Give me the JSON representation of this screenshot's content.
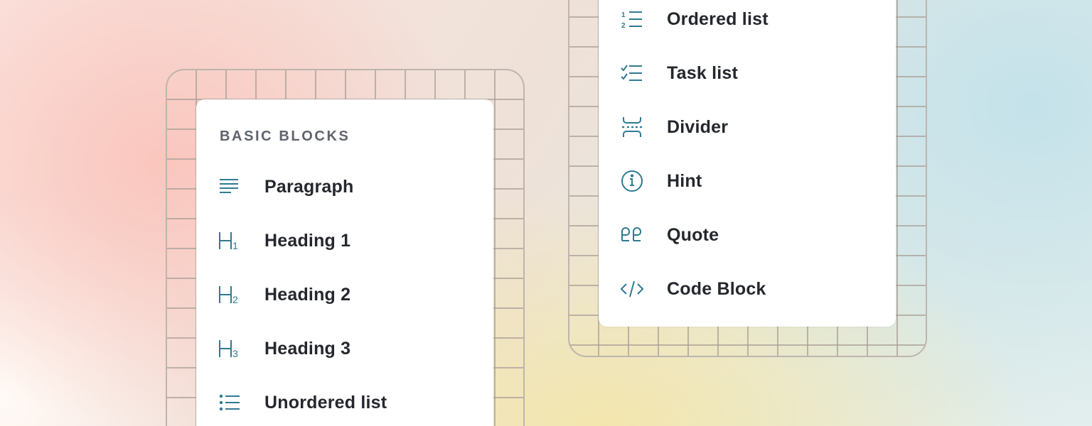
{
  "accent_color": "#2f7a90",
  "left_panel": {
    "header": "BASIC BLOCKS",
    "items": [
      {
        "label": "Paragraph",
        "icon": "paragraph-icon"
      },
      {
        "label": "Heading 1",
        "icon": "heading-1-icon"
      },
      {
        "label": "Heading 2",
        "icon": "heading-2-icon"
      },
      {
        "label": "Heading 3",
        "icon": "heading-3-icon"
      },
      {
        "label": "Unordered list",
        "icon": "unordered-list-icon"
      }
    ]
  },
  "right_panel": {
    "items": [
      {
        "label": "Ordered list",
        "icon": "ordered-list-icon"
      },
      {
        "label": "Task list",
        "icon": "task-list-icon"
      },
      {
        "label": "Divider",
        "icon": "divider-icon"
      },
      {
        "label": "Hint",
        "icon": "info-icon"
      },
      {
        "label": "Quote",
        "icon": "quote-icon"
      },
      {
        "label": "Code Block",
        "icon": "code-icon"
      }
    ]
  }
}
